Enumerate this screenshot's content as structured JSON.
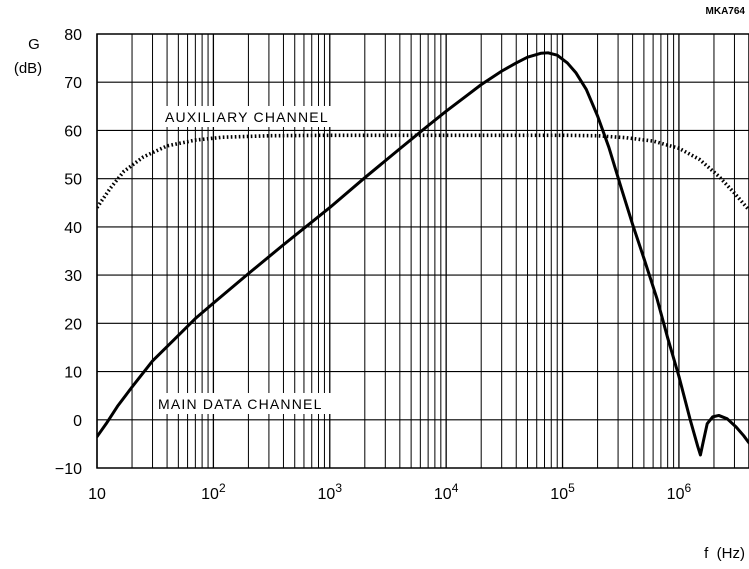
{
  "figure_code": "MKA764",
  "chart_data": {
    "type": "line",
    "title": "",
    "ylabel_symbol": "G",
    "ylabel_unit": "(dB)",
    "xlabel": "f  (Hz)",
    "xscale": "log",
    "xlim": [
      10,
      4000000
    ],
    "ylim": [
      -10,
      80
    ],
    "grid": true,
    "x_tick_labels": [
      {
        "value": 10,
        "base": "10",
        "exp": ""
      },
      {
        "value": 100,
        "base": "10",
        "exp": "2"
      },
      {
        "value": 1000,
        "base": "10",
        "exp": "3"
      },
      {
        "value": 10000,
        "base": "10",
        "exp": "4"
      },
      {
        "value": 100000,
        "base": "10",
        "exp": "5"
      },
      {
        "value": 1000000,
        "base": "10",
        "exp": "6"
      }
    ],
    "y_tick_labels": [
      "80",
      "70",
      "60",
      "50",
      "40",
      "30",
      "20",
      "10",
      "0",
      "−10"
    ],
    "y_ticks": [
      80,
      70,
      60,
      50,
      40,
      30,
      20,
      10,
      0,
      -10
    ],
    "series": [
      {
        "name": "AUXILIARY CHANNEL",
        "style": "dotted",
        "color": "#000000",
        "points": [
          [
            10,
            44
          ],
          [
            13,
            48
          ],
          [
            17,
            51.5
          ],
          [
            25,
            54.5
          ],
          [
            40,
            56.8
          ],
          [
            70,
            58
          ],
          [
            120,
            58.6
          ],
          [
            300,
            58.9
          ],
          [
            1000,
            59
          ],
          [
            10000,
            59
          ],
          [
            100000,
            59
          ],
          [
            200000,
            58.9
          ],
          [
            350000,
            58.5
          ],
          [
            600000,
            57.8
          ],
          [
            1000000,
            56.3
          ],
          [
            1500000,
            54
          ],
          [
            2200000,
            50.5
          ],
          [
            3000000,
            47
          ],
          [
            4000000,
            43.5
          ]
        ]
      },
      {
        "name": "MAIN DATA CHANNEL",
        "style": "solid",
        "color": "#000000",
        "points": [
          [
            10,
            -3.5
          ],
          [
            12,
            -0.8
          ],
          [
            15,
            2.8
          ],
          [
            20,
            6.8
          ],
          [
            30,
            12.2
          ],
          [
            50,
            17.5
          ],
          [
            70,
            21
          ],
          [
            100,
            24.2
          ],
          [
            200,
            30.3
          ],
          [
            400,
            36.3
          ],
          [
            700,
            41
          ],
          [
            1000,
            44
          ],
          [
            2000,
            50.2
          ],
          [
            4000,
            56.2
          ],
          [
            7000,
            61
          ],
          [
            10000,
            64
          ],
          [
            15000,
            67.2
          ],
          [
            20000,
            69.5
          ],
          [
            30000,
            72.3
          ],
          [
            40000,
            74
          ],
          [
            50000,
            75.2
          ],
          [
            65000,
            76
          ],
          [
            75000,
            76.1
          ],
          [
            90000,
            75.6
          ],
          [
            110000,
            74
          ],
          [
            130000,
            72
          ],
          [
            160000,
            68.5
          ],
          [
            200000,
            63
          ],
          [
            250000,
            56.5
          ],
          [
            320000,
            48
          ],
          [
            400000,
            40.5
          ],
          [
            500000,
            33.5
          ],
          [
            650000,
            25
          ],
          [
            800000,
            17
          ],
          [
            1000000,
            9
          ],
          [
            1250000,
            0
          ],
          [
            1450000,
            -5.5
          ],
          [
            1530000,
            -7.3
          ],
          [
            1620000,
            -4.5
          ],
          [
            1750000,
            -0.8
          ],
          [
            1950000,
            0.6
          ],
          [
            2200000,
            0.9
          ],
          [
            2600000,
            0.2
          ],
          [
            3100000,
            -1.5
          ],
          [
            3600000,
            -3.3
          ],
          [
            4000000,
            -4.8
          ]
        ]
      }
    ]
  }
}
